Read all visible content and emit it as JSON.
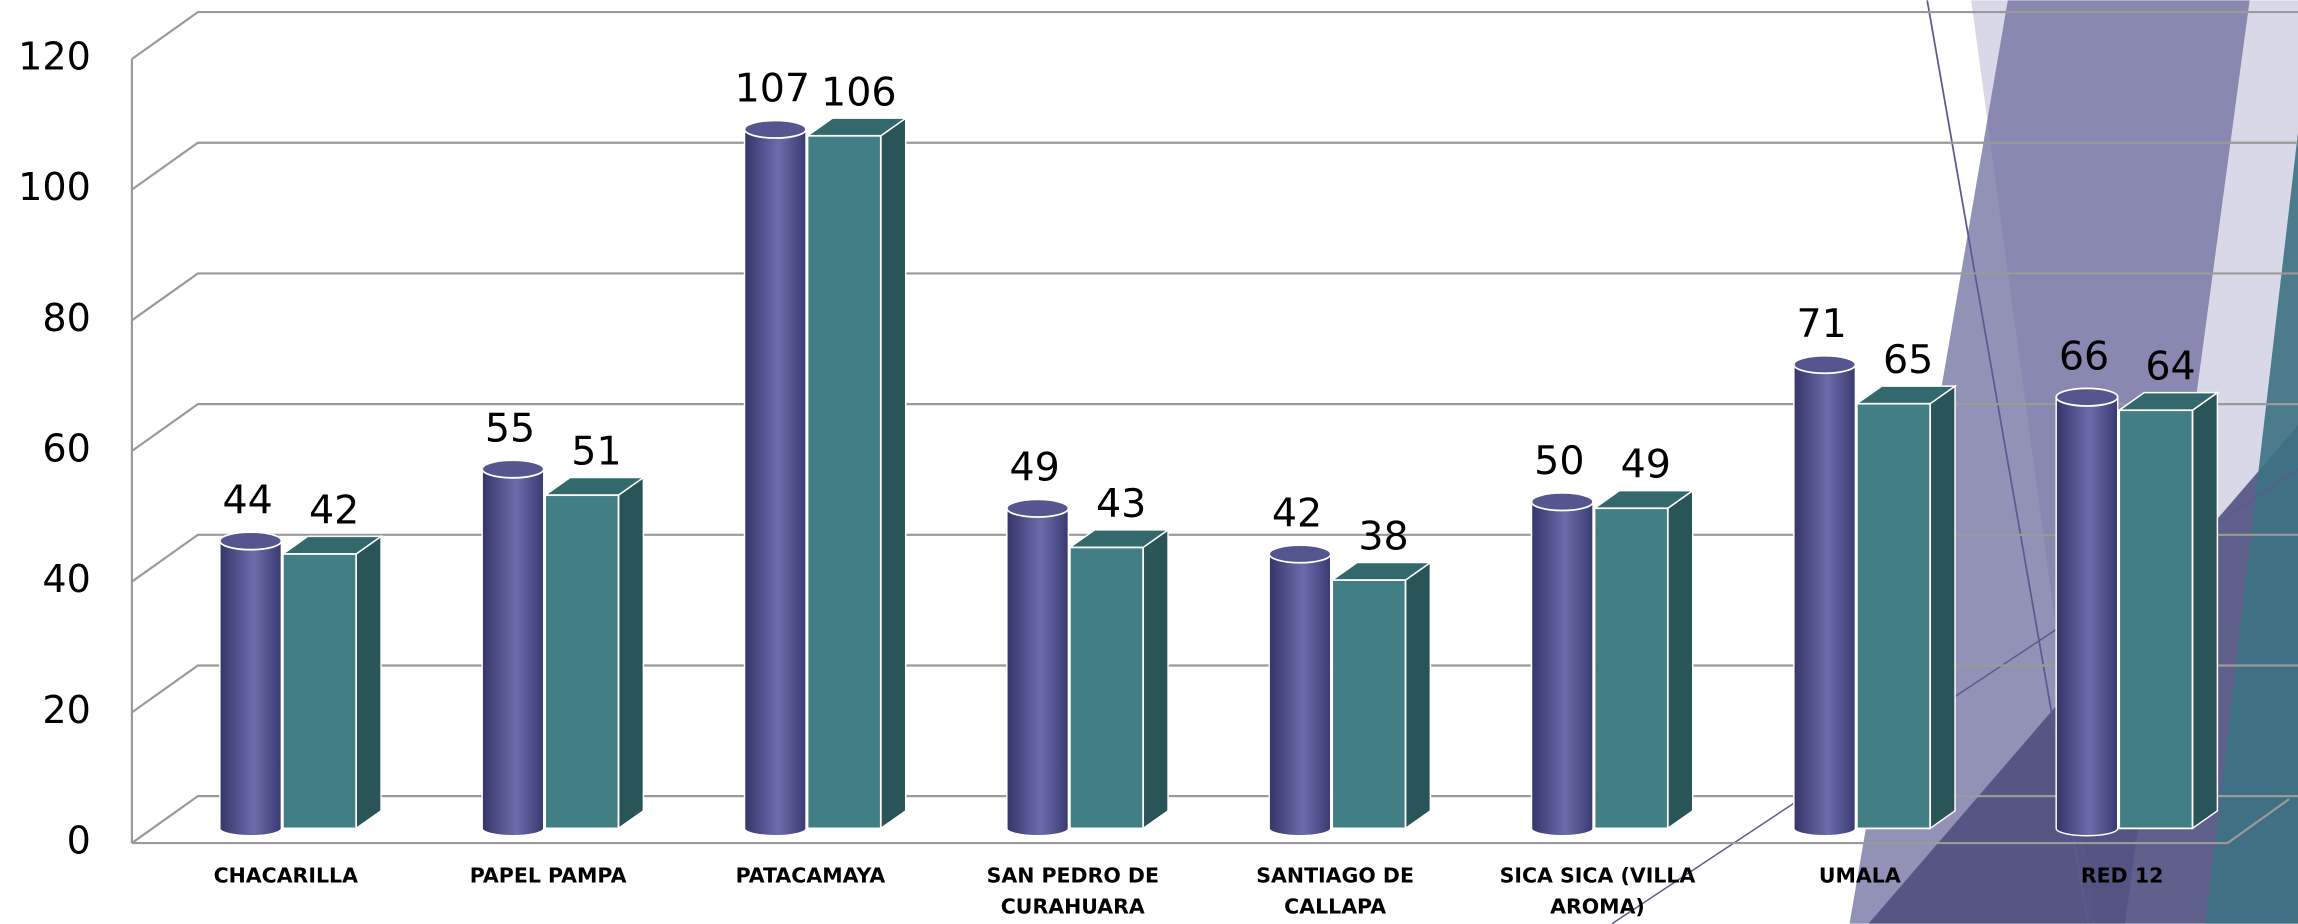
{
  "chart_data": {
    "type": "bar3d",
    "categories": [
      "CHACARILLA",
      "PAPEL PAMPA",
      "PATACAMAYA",
      "SAN PEDRO DE CURAHUARA",
      "SANTIAGO DE CALLAPA",
      "SICA SICA (VILLA AROMA)",
      "UMALA",
      "RED 12"
    ],
    "series": [
      {
        "color": "#55558f",
        "shape": "cylinder",
        "values": [
          44,
          55,
          107,
          49,
          42,
          50,
          71,
          66
        ]
      },
      {
        "color": "#417f85",
        "shape": "box",
        "values": [
          42,
          51,
          106,
          43,
          38,
          49,
          65,
          64
        ]
      }
    ],
    "ylim": [
      0,
      120
    ],
    "yticks": [
      0,
      20,
      40,
      60,
      80,
      100,
      120
    ],
    "grid": true
  }
}
